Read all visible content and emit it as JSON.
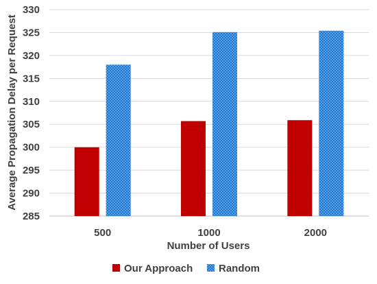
{
  "chart_data": {
    "type": "bar",
    "categories": [
      "500",
      "1000",
      "2000"
    ],
    "series": [
      {
        "name": "Our Approach",
        "values": [
          300.0,
          305.7,
          305.9
        ],
        "color": "#c00000",
        "pattern": "solid"
      },
      {
        "name": "Random",
        "values": [
          318.0,
          325.1,
          325.4
        ],
        "color": "#1f78d1",
        "pattern": "dots"
      }
    ],
    "xlabel": "Number of Users",
    "ylabel": "Average Propagation Delay per Request",
    "ylim": [
      285,
      330
    ],
    "yticks": [
      285,
      290,
      295,
      300,
      305,
      310,
      315,
      320,
      325,
      330
    ],
    "grid": true,
    "legend": "bottom"
  }
}
